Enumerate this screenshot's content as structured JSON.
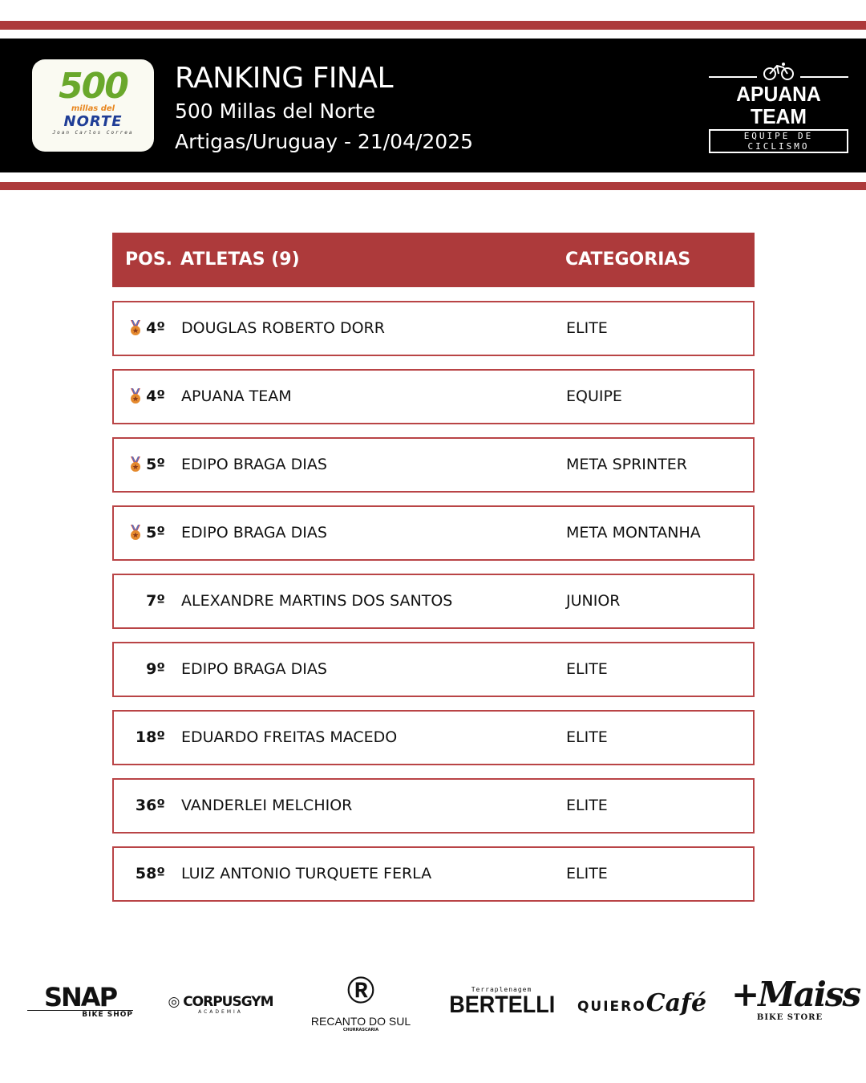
{
  "header": {
    "title": "RANKING FINAL",
    "event": "500 Millas del Norte",
    "location_date": "Artigas/Uruguay - 21/04/2025",
    "event_logo": {
      "number": "500",
      "line1": "millas del",
      "line2": "NORTE",
      "line3": "Joan Carlos Correa"
    },
    "team_logo": {
      "name": "APUANA TEAM",
      "tagline": "EQUIPE DE CICLISMO"
    }
  },
  "colors": {
    "accent": "#ad3a3b",
    "band": "#000000"
  },
  "table": {
    "headers": {
      "pos": "POS.",
      "athletes": "ATLETAS (9)",
      "categories": "CATEGORIAS"
    },
    "rows": [
      {
        "pos": "4º",
        "athlete": "DOUGLAS ROBERTO DORR",
        "category": "ELITE",
        "medal": true
      },
      {
        "pos": "4º",
        "athlete": "APUANA TEAM",
        "category": "EQUIPE",
        "medal": true
      },
      {
        "pos": "5º",
        "athlete": "EDIPO BRAGA DIAS",
        "category": "META SPRINTER",
        "medal": true
      },
      {
        "pos": "5º",
        "athlete": "EDIPO BRAGA DIAS",
        "category": "META MONTANHA",
        "medal": true
      },
      {
        "pos": "7º",
        "athlete": "ALEXANDRE MARTINS DOS SANTOS",
        "category": "JUNIOR",
        "medal": false
      },
      {
        "pos": "9º",
        "athlete": "EDIPO BRAGA DIAS",
        "category": "ELITE",
        "medal": false
      },
      {
        "pos": "18º",
        "athlete": "EDUARDO FREITAS MACEDO",
        "category": "ELITE",
        "medal": false
      },
      {
        "pos": "36º",
        "athlete": "VANDERLEI MELCHIOR",
        "category": "ELITE",
        "medal": false
      },
      {
        "pos": "58º",
        "athlete": "LUIZ ANTONIO TURQUETE FERLA",
        "category": "ELITE",
        "medal": false
      }
    ]
  },
  "sponsors": [
    {
      "name": "SNAP",
      "sub": "BIKE SHOP"
    },
    {
      "name": "CORPUSGYM",
      "sub": "ACADEMIA"
    },
    {
      "name": "RECANTO DO SUL",
      "sub": "CHURRASCARIA"
    },
    {
      "name": "BERTELLI",
      "sub": "Terraplenagem"
    },
    {
      "name": "QUIERO",
      "sub": "Café"
    },
    {
      "name": "+Maiss",
      "sub": "BIKE STORE"
    }
  ]
}
